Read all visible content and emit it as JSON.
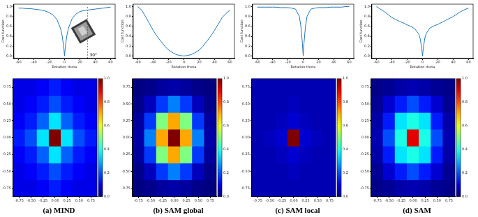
{
  "chart_data": [
    {
      "type": "line",
      "x_label": "Rotation theta",
      "y_label": "Cost function",
      "color": "#1f77b4",
      "grid": false,
      "x": [
        -60,
        -55,
        -50,
        -45,
        -40,
        -35,
        -30,
        -25,
        -20,
        -15,
        -10,
        -5,
        -3,
        -1,
        0,
        1,
        3,
        5,
        10,
        15,
        20,
        25,
        30,
        35,
        40,
        45,
        50,
        55,
        60
      ],
      "values": [
        0.97,
        0.97,
        0.96,
        0.96,
        0.95,
        0.94,
        0.93,
        0.91,
        0.88,
        0.83,
        0.74,
        0.55,
        0.4,
        0.18,
        0.0,
        0.18,
        0.41,
        0.56,
        0.76,
        0.85,
        0.9,
        0.92,
        0.93,
        0.94,
        0.95,
        0.96,
        0.97,
        0.98,
        0.99
      ],
      "xlim": [
        -66,
        66
      ],
      "xticks": [
        -60,
        -40,
        -20,
        0,
        20,
        40,
        60
      ],
      "ylim": [
        -0.05,
        1.05
      ],
      "yticks": [
        {
          "value": 0,
          "label": "0.0"
        },
        0.2,
        0.4,
        0.6,
        0.8,
        {
          "value": 1,
          "label": "1.0"
        }
      ],
      "annotations": [
        {
          "text": "30°",
          "x": 30
        }
      ]
    },
    {
      "type": "line",
      "x_label": "Rotation theta",
      "y_label": "Cost function",
      "color": "#1f77b4",
      "grid": false,
      "x": [
        -60,
        -55,
        -50,
        -45,
        -40,
        -35,
        -30,
        -25,
        -20,
        -15,
        -10,
        -5,
        0,
        5,
        10,
        15,
        20,
        25,
        30,
        35,
        40,
        45,
        50,
        55,
        60
      ],
      "values": [
        1.0,
        0.93,
        0.8,
        0.66,
        0.52,
        0.4,
        0.3,
        0.2,
        0.12,
        0.07,
        0.03,
        0.01,
        0.0,
        0.01,
        0.03,
        0.07,
        0.12,
        0.2,
        0.3,
        0.4,
        0.52,
        0.65,
        0.78,
        0.86,
        0.93
      ],
      "xlim": [
        -66,
        66
      ],
      "xticks": [
        -60,
        -40,
        -20,
        0,
        20,
        40,
        60
      ],
      "ylim": [
        -0.05,
        1.05
      ],
      "yticks": [
        {
          "value": 0,
          "label": "0.0"
        },
        0.2,
        0.4,
        0.6,
        0.8,
        {
          "value": 1,
          "label": "1.0"
        }
      ]
    },
    {
      "type": "line",
      "x_label": "Rotation theta",
      "y_label": "Cost function",
      "color": "#1f77b4",
      "grid": false,
      "x": [
        -60,
        -55,
        -50,
        -45,
        -40,
        -35,
        -30,
        -25,
        -20,
        -15,
        -10,
        -5,
        -3,
        -1,
        0,
        1,
        3,
        5,
        10,
        15,
        20,
        25,
        30,
        35,
        40,
        45,
        50,
        55,
        60
      ],
      "values": [
        0.99,
        0.99,
        0.99,
        0.99,
        0.99,
        0.99,
        0.98,
        0.98,
        0.98,
        0.97,
        0.95,
        0.8,
        0.6,
        0.25,
        0.0,
        0.25,
        0.6,
        0.8,
        0.95,
        0.97,
        0.98,
        0.98,
        0.98,
        0.99,
        0.99,
        0.99,
        0.99,
        1.0,
        1.0
      ],
      "xlim": [
        -66,
        66
      ],
      "xticks": [
        -60,
        -40,
        -20,
        0,
        20,
        40,
        60
      ],
      "ylim": [
        -0.05,
        1.05
      ],
      "yticks": [
        {
          "value": 0,
          "label": "0.0"
        },
        0.2,
        0.4,
        0.6,
        0.8,
        {
          "value": 1,
          "label": "1.0"
        }
      ]
    },
    {
      "type": "line",
      "x_label": "Rotation theta",
      "y_label": "Cost function",
      "color": "#1f77b4",
      "grid": false,
      "x": [
        -60,
        -55,
        -50,
        -45,
        -40,
        -35,
        -30,
        -25,
        -20,
        -15,
        -10,
        -5,
        -3,
        -1,
        0,
        1,
        3,
        5,
        10,
        15,
        20,
        25,
        30,
        35,
        40,
        45,
        50,
        55,
        60
      ],
      "values": [
        1.0,
        0.95,
        0.9,
        0.84,
        0.78,
        0.74,
        0.7,
        0.67,
        0.63,
        0.6,
        0.55,
        0.45,
        0.35,
        0.15,
        0.0,
        0.15,
        0.36,
        0.46,
        0.57,
        0.61,
        0.64,
        0.68,
        0.72,
        0.76,
        0.8,
        0.85,
        0.9,
        0.94,
        0.97
      ],
      "xlim": [
        -66,
        66
      ],
      "xticks": [
        -60,
        -40,
        -20,
        0,
        20,
        40,
        60
      ],
      "ylim": [
        -0.05,
        1.05
      ],
      "yticks": [
        {
          "value": 0,
          "label": "0.0"
        },
        0.2,
        0.4,
        0.6,
        0.8,
        {
          "value": 1,
          "label": "1.0"
        }
      ]
    },
    {
      "type": "heatmap",
      "title": "(a) MIND",
      "grid": false,
      "x": [
        -0.75,
        -0.5,
        -0.25,
        0,
        0.25,
        0.5,
        0.75
      ],
      "y": [
        -0.75,
        -0.5,
        -0.25,
        0,
        0.25,
        0.5,
        0.75
      ],
      "z": [
        [
          0.1,
          0.1,
          0.12,
          0.15,
          0.12,
          0.1,
          0.1
        ],
        [
          0.1,
          0.12,
          0.15,
          0.2,
          0.15,
          0.12,
          0.1
        ],
        [
          0.12,
          0.15,
          0.22,
          0.35,
          0.22,
          0.15,
          0.12
        ],
        [
          0.15,
          0.2,
          0.35,
          1.0,
          0.35,
          0.2,
          0.15
        ],
        [
          0.12,
          0.15,
          0.22,
          0.35,
          0.22,
          0.15,
          0.12
        ],
        [
          0.1,
          0.12,
          0.15,
          0.2,
          0.15,
          0.12,
          0.1
        ],
        [
          0.1,
          0.1,
          0.12,
          0.15,
          0.12,
          0.1,
          0.1
        ]
      ],
      "xlim": [
        -0.875,
        0.875
      ],
      "xticks": [
        -0.75,
        {
          "value": -0.5,
          "label": "-0.50"
        },
        -0.25,
        {
          "value": 0,
          "label": "0.00"
        },
        0.25,
        {
          "value": 0.5,
          "label": "0.50"
        },
        0.75
      ],
      "ylim": [
        -0.875,
        0.875
      ],
      "yticks": [
        -0.75,
        {
          "value": -0.5,
          "label": "-0.50"
        },
        -0.25,
        {
          "value": 0,
          "label": "0.00"
        },
        0.25,
        {
          "value": 0.5,
          "label": "0.50"
        },
        0.75
      ],
      "zlim": [
        0,
        1
      ],
      "zticks": [
        {
          "value": 0,
          "label": "0.0"
        },
        0.2,
        0.4,
        0.6,
        0.8,
        {
          "value": 1,
          "label": "1.0"
        }
      ]
    },
    {
      "type": "heatmap",
      "title": "(b) SAM global",
      "grid": false,
      "x": [
        -0.75,
        -0.5,
        -0.25,
        0,
        0.25,
        0.5,
        0.75
      ],
      "y": [
        -0.75,
        -0.5,
        -0.25,
        0,
        0.25,
        0.5,
        0.75
      ],
      "z": [
        [
          0.0,
          0.01,
          0.03,
          0.04,
          0.03,
          0.01,
          0.0
        ],
        [
          0.01,
          0.06,
          0.18,
          0.25,
          0.18,
          0.06,
          0.01
        ],
        [
          0.03,
          0.18,
          0.5,
          0.71,
          0.5,
          0.18,
          0.03
        ],
        [
          0.04,
          0.25,
          0.71,
          1.0,
          0.71,
          0.25,
          0.04
        ],
        [
          0.03,
          0.18,
          0.5,
          0.71,
          0.5,
          0.18,
          0.03
        ],
        [
          0.01,
          0.06,
          0.18,
          0.25,
          0.18,
          0.06,
          0.01
        ],
        [
          0.0,
          0.01,
          0.03,
          0.04,
          0.03,
          0.01,
          0.0
        ]
      ],
      "xlim": [
        -0.875,
        0.875
      ],
      "xticks": [
        -0.75,
        {
          "value": -0.5,
          "label": "-0.50"
        },
        -0.25,
        {
          "value": 0,
          "label": "0.00"
        },
        0.25,
        {
          "value": 0.5,
          "label": "0.50"
        },
        0.75
      ],
      "ylim": [
        -0.875,
        0.875
      ],
      "yticks": [
        -0.75,
        {
          "value": -0.5,
          "label": "-0.50"
        },
        -0.25,
        {
          "value": 0,
          "label": "0.00"
        },
        0.25,
        {
          "value": 0.5,
          "label": "0.50"
        },
        0.75
      ],
      "zlim": [
        0,
        1
      ],
      "zticks": [
        {
          "value": 0,
          "label": "0.0"
        },
        0.2,
        0.4,
        0.6,
        0.8,
        {
          "value": 1,
          "label": "1.0"
        }
      ]
    },
    {
      "type": "heatmap",
      "title": "(c) SAM local",
      "grid": false,
      "x": [
        -0.75,
        -0.5,
        -0.25,
        0,
        0.25,
        0.5,
        0.75
      ],
      "y": [
        -0.75,
        -0.5,
        -0.25,
        0,
        0.25,
        0.5,
        0.75
      ],
      "z": [
        [
          0.05,
          0.05,
          0.05,
          0.05,
          0.05,
          0.05,
          0.05
        ],
        [
          0.05,
          0.05,
          0.05,
          0.06,
          0.05,
          0.05,
          0.05
        ],
        [
          0.05,
          0.05,
          0.06,
          0.08,
          0.06,
          0.05,
          0.05
        ],
        [
          0.05,
          0.06,
          0.08,
          1.0,
          0.08,
          0.06,
          0.05
        ],
        [
          0.05,
          0.05,
          0.06,
          0.08,
          0.06,
          0.05,
          0.05
        ],
        [
          0.05,
          0.05,
          0.05,
          0.06,
          0.05,
          0.05,
          0.05
        ],
        [
          0.05,
          0.05,
          0.05,
          0.05,
          0.05,
          0.05,
          0.05
        ]
      ],
      "xlim": [
        -0.875,
        0.875
      ],
      "xticks": [
        -0.75,
        {
          "value": -0.5,
          "label": "-0.50"
        },
        -0.25,
        {
          "value": 0,
          "label": "0.00"
        },
        0.25,
        {
          "value": 0.5,
          "label": "0.50"
        },
        0.75
      ],
      "ylim": [
        -0.875,
        0.875
      ],
      "yticks": [
        -0.75,
        {
          "value": -0.5,
          "label": "-0.50"
        },
        -0.25,
        {
          "value": 0,
          "label": "0.00"
        },
        0.25,
        {
          "value": 0.5,
          "label": "0.50"
        },
        0.75
      ],
      "zlim": [
        0,
        1
      ],
      "zticks": [
        {
          "value": 0,
          "label": "0.0"
        },
        0.2,
        0.4,
        0.6,
        0.8,
        {
          "value": 1,
          "label": "1.0"
        }
      ]
    },
    {
      "type": "heatmap",
      "title": "(d) SAM",
      "grid": false,
      "x": [
        -0.75,
        -0.5,
        -0.25,
        0,
        0.25,
        0.5,
        0.75
      ],
      "y": [
        -0.75,
        -0.5,
        -0.25,
        0,
        0.25,
        0.5,
        0.75
      ],
      "z": [
        [
          0.01,
          0.02,
          0.04,
          0.05,
          0.04,
          0.02,
          0.01
        ],
        [
          0.02,
          0.08,
          0.15,
          0.2,
          0.15,
          0.08,
          0.02
        ],
        [
          0.04,
          0.15,
          0.35,
          0.4,
          0.35,
          0.15,
          0.04
        ],
        [
          0.05,
          0.2,
          0.4,
          0.9,
          0.4,
          0.2,
          0.05
        ],
        [
          0.04,
          0.15,
          0.35,
          0.4,
          0.35,
          0.15,
          0.04
        ],
        [
          0.02,
          0.08,
          0.15,
          0.2,
          0.15,
          0.08,
          0.02
        ],
        [
          0.01,
          0.02,
          0.04,
          0.05,
          0.04,
          0.02,
          0.01
        ]
      ],
      "xlim": [
        -0.875,
        0.875
      ],
      "xticks": [
        -0.75,
        {
          "value": -0.5,
          "label": "-0.50"
        },
        -0.25,
        {
          "value": 0,
          "label": "0.00"
        },
        0.25,
        {
          "value": 0.5,
          "label": "0.50"
        },
        0.75
      ],
      "ylim": [
        -0.875,
        0.875
      ],
      "yticks": [
        -0.75,
        {
          "value": -0.5,
          "label": "-0.50"
        },
        -0.25,
        {
          "value": 0,
          "label": "0.00"
        },
        0.25,
        {
          "value": 0.5,
          "label": "0.50"
        },
        0.75
      ],
      "zlim": [
        0,
        1
      ],
      "zticks": [
        {
          "value": 0,
          "label": "0.0"
        },
        0.2,
        0.4,
        0.6,
        0.8,
        {
          "value": 1,
          "label": "1.0"
        }
      ]
    }
  ]
}
